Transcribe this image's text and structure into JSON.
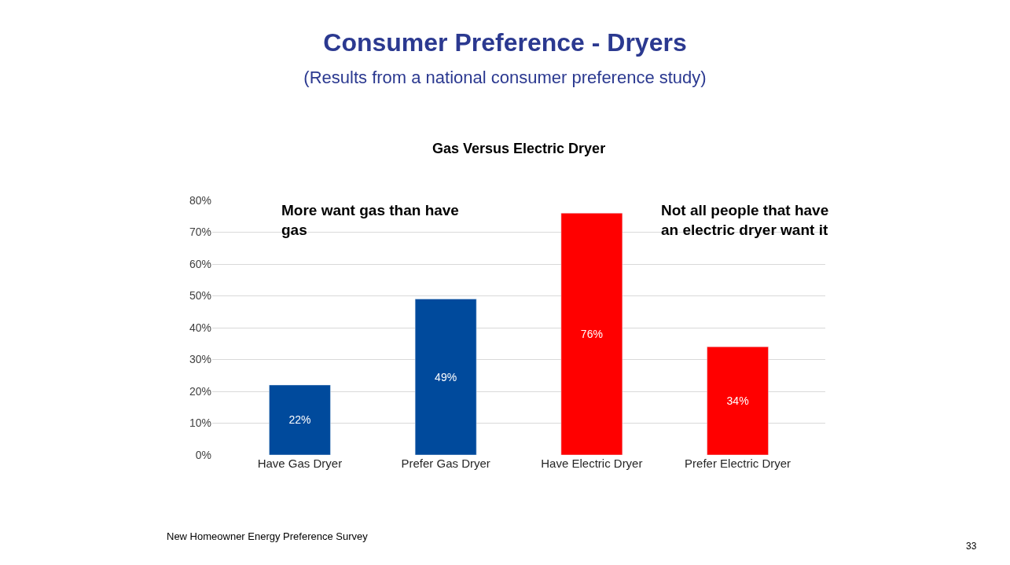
{
  "chart_data": {
    "type": "bar",
    "title": "Consumer Preference - Dryers",
    "subtitle": "(Results from a national consumer preference study)",
    "categories": [
      "Have Gas Dryer",
      "Prefer Gas Dryer",
      "Have Electric Dryer",
      "Prefer Electric Dryer"
    ],
    "values": [
      22,
      49,
      76,
      34
    ],
    "colors": [
      "#004a9c",
      "#004a9c",
      "#ff0000",
      "#ff0000"
    ],
    "value_labels": [
      "22%",
      "49%",
      "76%",
      "34%"
    ],
    "ylim": [
      0,
      80
    ],
    "yticks": [
      {
        "value": 0,
        "label": "0%"
      },
      {
        "value": 10,
        "label": "10%"
      },
      {
        "value": 20,
        "label": "20%"
      },
      {
        "value": 30,
        "label": "30%"
      },
      {
        "value": 40,
        "label": "40%"
      },
      {
        "value": 50,
        "label": "50%"
      },
      {
        "value": 60,
        "label": "60%"
      },
      {
        "value": 70,
        "label": "70%"
      },
      {
        "value": 80,
        "label": "80%"
      }
    ],
    "grid": "y",
    "annotations": [
      "Gas Versus Electric Dryer",
      "More want gas than have gas",
      "Not all people that have an electric dryer want it",
      "New Homeowner Energy Preference Survey",
      "33"
    ]
  }
}
